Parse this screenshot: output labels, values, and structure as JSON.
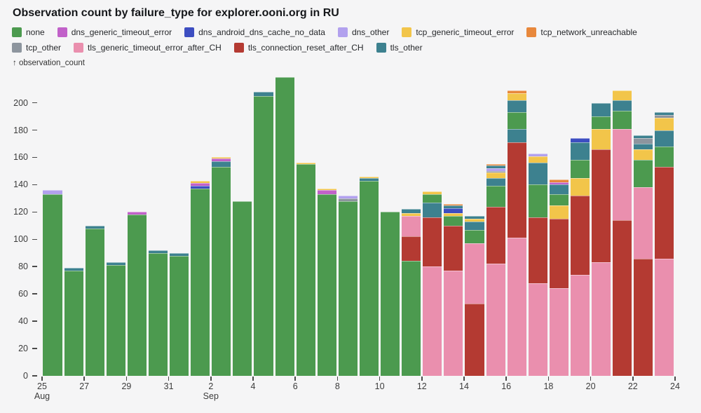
{
  "chart_data": {
    "type": "bar",
    "stacked": true,
    "title": "Observation count by failure_type for explorer.ooni.org in RU",
    "ylabel": "↑ observation_count",
    "xlabel": "",
    "legend_position": "top",
    "grid": false,
    "ylim": [
      0,
      220
    ],
    "y_ticks": [
      0,
      20,
      40,
      60,
      80,
      100,
      120,
      140,
      160,
      180,
      200
    ],
    "x_ticks": [
      {
        "label": "25",
        "sublabel": "Aug",
        "day_index": 0
      },
      {
        "label": "27",
        "day_index": 2
      },
      {
        "label": "29",
        "day_index": 4
      },
      {
        "label": "31",
        "day_index": 6
      },
      {
        "label": "2",
        "sublabel": "Sep",
        "day_index": 8
      },
      {
        "label": "4",
        "day_index": 10
      },
      {
        "label": "6",
        "day_index": 12
      },
      {
        "label": "8",
        "day_index": 14
      },
      {
        "label": "10",
        "day_index": 16
      },
      {
        "label": "12",
        "day_index": 18
      },
      {
        "label": "14",
        "day_index": 20
      },
      {
        "label": "16",
        "day_index": 22
      },
      {
        "label": "18",
        "day_index": 24
      },
      {
        "label": "20",
        "day_index": 26
      },
      {
        "label": "22",
        "day_index": 28
      },
      {
        "label": "24",
        "day_index": 30
      }
    ],
    "series": [
      {
        "key": "none",
        "label": "none",
        "color": "#4c9a4f"
      },
      {
        "key": "dns_generic_timeout_error",
        "label": "dns_generic_timeout_error",
        "color": "#c161c9"
      },
      {
        "key": "dns_android_dns_cache_no_data",
        "label": "dns_android_dns_cache_no_data",
        "color": "#3d4ec1"
      },
      {
        "key": "dns_other",
        "label": "dns_other",
        "color": "#b2a1ee"
      },
      {
        "key": "tcp_generic_timeout_error",
        "label": "tcp_generic_timeout_error",
        "color": "#f2c54a"
      },
      {
        "key": "tcp_network_unreachable",
        "label": "tcp_network_unreachable",
        "color": "#e8883c"
      },
      {
        "key": "tcp_other",
        "label": "tcp_other",
        "color": "#8d959e"
      },
      {
        "key": "tls_generic_timeout_error_after_CH",
        "label": "tls_generic_timeout_error_after_CH",
        "color": "#ea8fae"
      },
      {
        "key": "tls_connection_reset_after_CH",
        "label": "tls_connection_reset_after_CH",
        "color": "#b43a32"
      },
      {
        "key": "tls_other",
        "label": "tls_other",
        "color": "#3d818f"
      }
    ],
    "bars": [
      {
        "date": "Aug 25",
        "segments": [
          {
            "type": "none",
            "value": 133
          },
          {
            "type": "dns_other",
            "value": 3
          }
        ]
      },
      {
        "date": "Aug 26",
        "segments": [
          {
            "type": "none",
            "value": 77
          },
          {
            "type": "tls_other",
            "value": 2
          }
        ]
      },
      {
        "date": "Aug 27",
        "segments": [
          {
            "type": "none",
            "value": 108
          },
          {
            "type": "tls_other",
            "value": 2
          }
        ]
      },
      {
        "date": "Aug 28",
        "segments": [
          {
            "type": "none",
            "value": 81
          },
          {
            "type": "tls_other",
            "value": 2
          }
        ]
      },
      {
        "date": "Aug 29",
        "segments": [
          {
            "type": "none",
            "value": 118
          },
          {
            "type": "dns_generic_timeout_error",
            "value": 2
          }
        ]
      },
      {
        "date": "Aug 30",
        "segments": [
          {
            "type": "none",
            "value": 90
          },
          {
            "type": "tls_other",
            "value": 2
          }
        ]
      },
      {
        "date": "Aug 31",
        "segments": [
          {
            "type": "none",
            "value": 88
          },
          {
            "type": "tls_other",
            "value": 2
          }
        ]
      },
      {
        "date": "Sep 1",
        "segments": [
          {
            "type": "none",
            "value": 137
          },
          {
            "type": "dns_android_dns_cache_no_data",
            "value": 2
          },
          {
            "type": "dns_generic_timeout_error",
            "value": 2
          },
          {
            "type": "tcp_generic_timeout_error",
            "value": 2
          }
        ]
      },
      {
        "date": "Sep 2",
        "segments": [
          {
            "type": "none",
            "value": 153
          },
          {
            "type": "tls_other",
            "value": 4
          },
          {
            "type": "dns_generic_timeout_error",
            "value": 2
          },
          {
            "type": "tcp_generic_timeout_error",
            "value": 1
          }
        ]
      },
      {
        "date": "Sep 3",
        "segments": [
          {
            "type": "none",
            "value": 128
          }
        ]
      },
      {
        "date": "Sep 4",
        "segments": [
          {
            "type": "none",
            "value": 205
          },
          {
            "type": "tls_other",
            "value": 3
          }
        ]
      },
      {
        "date": "Sep 5",
        "segments": [
          {
            "type": "none",
            "value": 219
          }
        ]
      },
      {
        "date": "Sep 6",
        "segments": [
          {
            "type": "none",
            "value": 155
          },
          {
            "type": "tcp_generic_timeout_error",
            "value": 1
          }
        ]
      },
      {
        "date": "Sep 7",
        "segments": [
          {
            "type": "none",
            "value": 133
          },
          {
            "type": "dns_generic_timeout_error",
            "value": 3
          },
          {
            "type": "tcp_generic_timeout_error",
            "value": 1
          }
        ]
      },
      {
        "date": "Sep 8",
        "segments": [
          {
            "type": "none",
            "value": 128
          },
          {
            "type": "tcp_other",
            "value": 2
          },
          {
            "type": "dns_other",
            "value": 2
          }
        ]
      },
      {
        "date": "Sep 9",
        "segments": [
          {
            "type": "none",
            "value": 143
          },
          {
            "type": "tls_other",
            "value": 2
          },
          {
            "type": "tcp_generic_timeout_error",
            "value": 1
          }
        ]
      },
      {
        "date": "Sep 10",
        "segments": [
          {
            "type": "none",
            "value": 120
          }
        ]
      },
      {
        "date": "Sep 11",
        "segments": [
          {
            "type": "none",
            "value": 84
          },
          {
            "type": "tls_connection_reset_after_CH",
            "value": 18
          },
          {
            "type": "tls_generic_timeout_error_after_CH",
            "value": 15
          },
          {
            "type": "tcp_generic_timeout_error",
            "value": 2
          },
          {
            "type": "tls_other",
            "value": 3
          }
        ]
      },
      {
        "date": "Sep 12",
        "segments": [
          {
            "type": "tls_generic_timeout_error_after_CH",
            "value": 80
          },
          {
            "type": "tls_connection_reset_after_CH",
            "value": 36
          },
          {
            "type": "tls_other",
            "value": 11
          },
          {
            "type": "none",
            "value": 6
          },
          {
            "type": "tcp_generic_timeout_error",
            "value": 2
          }
        ]
      },
      {
        "date": "Sep 13",
        "segments": [
          {
            "type": "tls_generic_timeout_error_after_CH",
            "value": 77
          },
          {
            "type": "tls_connection_reset_after_CH",
            "value": 33
          },
          {
            "type": "none",
            "value": 7
          },
          {
            "type": "tcp_generic_timeout_error",
            "value": 2
          },
          {
            "type": "dns_android_dns_cache_no_data",
            "value": 4
          },
          {
            "type": "tls_other",
            "value": 2
          },
          {
            "type": "tcp_network_unreachable",
            "value": 1
          }
        ]
      },
      {
        "date": "Sep 14",
        "segments": [
          {
            "type": "tls_connection_reset_after_CH",
            "value": 53
          },
          {
            "type": "tls_generic_timeout_error_after_CH",
            "value": 44
          },
          {
            "type": "none",
            "value": 10
          },
          {
            "type": "tls_other",
            "value": 6
          },
          {
            "type": "tcp_generic_timeout_error",
            "value": 2
          },
          {
            "type": "tls_other",
            "value": 2
          }
        ]
      },
      {
        "date": "Sep 15",
        "segments": [
          {
            "type": "tls_generic_timeout_error_after_CH",
            "value": 82
          },
          {
            "type": "tls_connection_reset_after_CH",
            "value": 42
          },
          {
            "type": "none",
            "value": 15
          },
          {
            "type": "tls_other",
            "value": 6
          },
          {
            "type": "tcp_generic_timeout_error",
            "value": 4
          },
          {
            "type": "tcp_other",
            "value": 1
          },
          {
            "type": "dns_other",
            "value": 2
          },
          {
            "type": "tls_other",
            "value": 2
          },
          {
            "type": "tcp_network_unreachable",
            "value": 1
          }
        ]
      },
      {
        "date": "Sep 16",
        "segments": [
          {
            "type": "tls_generic_timeout_error_after_CH",
            "value": 101
          },
          {
            "type": "tls_connection_reset_after_CH",
            "value": 70
          },
          {
            "type": "tls_other",
            "value": 10
          },
          {
            "type": "none",
            "value": 12
          },
          {
            "type": "tls_other",
            "value": 9
          },
          {
            "type": "tcp_generic_timeout_error",
            "value": 5
          },
          {
            "type": "tcp_network_unreachable",
            "value": 2
          }
        ]
      },
      {
        "date": "Sep 17",
        "segments": [
          {
            "type": "tls_generic_timeout_error_after_CH",
            "value": 68
          },
          {
            "type": "tls_connection_reset_after_CH",
            "value": 48
          },
          {
            "type": "none",
            "value": 24
          },
          {
            "type": "tls_other",
            "value": 16
          },
          {
            "type": "tcp_generic_timeout_error",
            "value": 5
          },
          {
            "type": "dns_other",
            "value": 2
          }
        ]
      },
      {
        "date": "Sep 18",
        "segments": [
          {
            "type": "tls_generic_timeout_error_after_CH",
            "value": 64
          },
          {
            "type": "tls_connection_reset_after_CH",
            "value": 51
          },
          {
            "type": "tcp_generic_timeout_error",
            "value": 10
          },
          {
            "type": "none",
            "value": 8
          },
          {
            "type": "tls_other",
            "value": 7
          },
          {
            "type": "dns_generic_timeout_error",
            "value": 2
          },
          {
            "type": "tcp_network_unreachable",
            "value": 2
          }
        ]
      },
      {
        "date": "Sep 19",
        "segments": [
          {
            "type": "tls_generic_timeout_error_after_CH",
            "value": 74
          },
          {
            "type": "tls_connection_reset_after_CH",
            "value": 58
          },
          {
            "type": "tcp_generic_timeout_error",
            "value": 13
          },
          {
            "type": "none",
            "value": 13
          },
          {
            "type": "tls_other",
            "value": 13
          },
          {
            "type": "dns_android_dns_cache_no_data",
            "value": 3
          }
        ]
      },
      {
        "date": "Sep 20",
        "segments": [
          {
            "type": "tls_generic_timeout_error_after_CH",
            "value": 83
          },
          {
            "type": "tls_connection_reset_after_CH",
            "value": 83
          },
          {
            "type": "tcp_generic_timeout_error",
            "value": 15
          },
          {
            "type": "none",
            "value": 9
          },
          {
            "type": "tls_other",
            "value": 10
          }
        ]
      },
      {
        "date": "Sep 21",
        "segments": [
          {
            "type": "tls_connection_reset_after_CH",
            "value": 114
          },
          {
            "type": "tls_generic_timeout_error_after_CH",
            "value": 67
          },
          {
            "type": "none",
            "value": 13
          },
          {
            "type": "tls_other",
            "value": 8
          },
          {
            "type": "tcp_generic_timeout_error",
            "value": 7
          }
        ]
      },
      {
        "date": "Sep 22",
        "segments": [
          {
            "type": "tls_connection_reset_after_CH",
            "value": 86
          },
          {
            "type": "tls_generic_timeout_error_after_CH",
            "value": 52
          },
          {
            "type": "none",
            "value": 20
          },
          {
            "type": "tcp_generic_timeout_error",
            "value": 8
          },
          {
            "type": "tls_other",
            "value": 4
          },
          {
            "type": "tcp_other",
            "value": 4
          },
          {
            "type": "tls_other",
            "value": 2
          }
        ]
      },
      {
        "date": "Sep 23",
        "segments": [
          {
            "type": "tls_generic_timeout_error_after_CH",
            "value": 86
          },
          {
            "type": "tls_connection_reset_after_CH",
            "value": 67
          },
          {
            "type": "none",
            "value": 15
          },
          {
            "type": "tls_other",
            "value": 12
          },
          {
            "type": "tcp_generic_timeout_error",
            "value": 9
          },
          {
            "type": "tcp_other",
            "value": 2
          },
          {
            "type": "tls_other",
            "value": 2
          }
        ]
      }
    ]
  }
}
